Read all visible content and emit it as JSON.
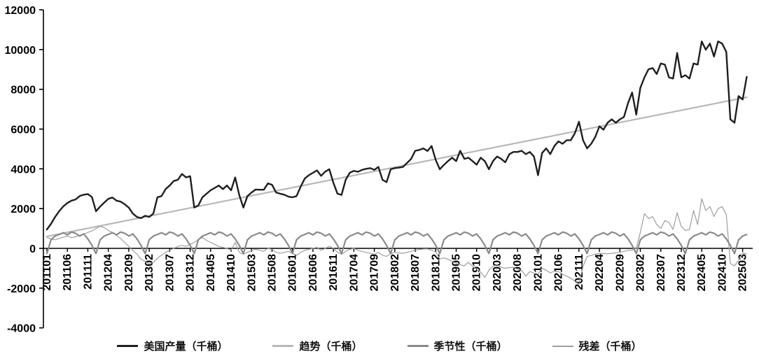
{
  "chart_data": {
    "type": "line",
    "title": "",
    "x_start": "2011-01",
    "x_end": "2025-04",
    "n_points": 172,
    "x_tick_interval_months": 5,
    "x_tick_labels": [
      "201101",
      "201106",
      "201111",
      "201204",
      "201209",
      "201302",
      "201307",
      "201312",
      "201405",
      "201410",
      "201503",
      "201508",
      "201601",
      "201606",
      "201611",
      "201704",
      "201709",
      "201802",
      "201807",
      "201812",
      "201905",
      "201910",
      "202003",
      "202008",
      "202101",
      "202106",
      "202111",
      "202204",
      "202209",
      "202302",
      "202307",
      "202312",
      "202405",
      "202410",
      "202503"
    ],
    "y_axis": {
      "min": -4000,
      "max": 12000,
      "tick_step": 2000,
      "ticks": [
        12000,
        10000,
        8000,
        6000,
        4000,
        2000,
        0,
        -2000,
        -4000
      ]
    },
    "grid": false,
    "legend_position": "bottom",
    "axis_color": "#000000",
    "series": [
      {
        "name": "美国产量（千桶）",
        "color": "#1f1f1f",
        "stroke_width": 2.4,
        "values": [
          950,
          1230,
          1580,
          1870,
          2110,
          2280,
          2400,
          2460,
          2630,
          2700,
          2730,
          2580,
          1870,
          2100,
          2300,
          2490,
          2560,
          2400,
          2350,
          2220,
          2050,
          1750,
          1580,
          1520,
          1640,
          1580,
          1750,
          2570,
          2630,
          2980,
          3160,
          3390,
          3450,
          3740,
          3570,
          3630,
          2050,
          2160,
          2570,
          2750,
          2920,
          3040,
          3160,
          2980,
          3160,
          2920,
          3570,
          2680,
          2050,
          2630,
          2810,
          2960,
          2950,
          2950,
          3270,
          3200,
          2810,
          2750,
          2700,
          2600,
          2570,
          2630,
          3100,
          3510,
          3680,
          3800,
          3920,
          3650,
          3860,
          3980,
          3300,
          2750,
          2690,
          3450,
          3800,
          3900,
          3850,
          3950,
          4000,
          4035,
          3950,
          4095,
          3450,
          3330,
          3980,
          4035,
          4060,
          4095,
          4300,
          4500,
          4910,
          4950,
          5030,
          4900,
          5150,
          4445,
          3980,
          4200,
          4390,
          4560,
          4390,
          4910,
          4500,
          4560,
          4390,
          4210,
          4560,
          4390,
          3980,
          4390,
          4620,
          4500,
          4330,
          4740,
          4850,
          4850,
          4910,
          4740,
          4850,
          4620,
          3680,
          4795,
          5030,
          4740,
          5150,
          5380,
          5260,
          5440,
          5440,
          5790,
          6370,
          5440,
          5030,
          5260,
          5610,
          6140,
          5970,
          6320,
          6490,
          6320,
          6490,
          6610,
          7310,
          7840,
          6730,
          8070,
          8600,
          9010,
          9070,
          8770,
          9300,
          9240,
          8600,
          8540,
          9830,
          8600,
          8710,
          8540,
          9300,
          9240,
          10410,
          9990,
          10300,
          9650,
          10410,
          10300,
          9880,
          6490,
          6320,
          7660,
          7490,
          8630
        ]
      },
      {
        "name": "趋势（千桶）",
        "color": "#b8b8b8",
        "stroke_width": 2.2,
        "linear": {
          "start": 600,
          "end": 7600
        }
      },
      {
        "name": "季节性（千桶）",
        "color": "#8a8a8a",
        "stroke_width": 2.2,
        "seasonal_pattern_jan_dec": [
          -260,
          430,
          620,
          700,
          790,
          680,
          820,
          760,
          620,
          730,
          480,
          150
        ]
      },
      {
        "name": "残差（千桶）",
        "color": "#9e9e9e",
        "stroke_width": 1.2,
        "values": [
          550,
          480,
          430,
          500,
          560,
          620,
          540,
          580,
          650,
          720,
          800,
          880,
          1000,
          1110,
          1050,
          900,
          800,
          650,
          500,
          300,
          100,
          -100,
          -300,
          -550,
          -650,
          -780,
          -700,
          -500,
          -350,
          -200,
          -100,
          0,
          100,
          150,
          100,
          200,
          300,
          450,
          550,
          400,
          300,
          200,
          100,
          50,
          0,
          -100,
          300,
          -200,
          -300,
          -200,
          -100,
          -50,
          -100,
          -150,
          0,
          -50,
          -200,
          -250,
          -200,
          -150,
          -250,
          -350,
          -200,
          -100,
          -50,
          0,
          50,
          -100,
          0,
          100,
          0,
          -200,
          -300,
          -150,
          -50,
          0,
          -100,
          -150,
          -200,
          -250,
          -300,
          -200,
          -350,
          -400,
          -260,
          -200,
          -230,
          -250,
          -200,
          -150,
          -100,
          -60,
          -30,
          -25,
          -100,
          -175,
          -530,
          -480,
          -550,
          -650,
          -760,
          -820,
          -880,
          -700,
          -900,
          -1050,
          -1200,
          -1460,
          -1100,
          -900,
          -830,
          -950,
          -1000,
          -970,
          -950,
          -1050,
          -1100,
          -1400,
          -1170,
          -1250,
          -1290,
          -1000,
          -1100,
          -1230,
          -1150,
          -1170,
          -1300,
          -1400,
          -1500,
          -1650,
          -1810,
          -900,
          -410,
          -350,
          -290,
          -250,
          -260,
          -270,
          -250,
          -230,
          -200,
          -150,
          -100,
          -90,
          0,
          800,
          1750,
          1500,
          1600,
          1200,
          1000,
          1400,
          1300,
          950,
          1800,
          1100,
          900,
          950,
          1900,
          1200,
          2500,
          1900,
          2100,
          1600,
          2000,
          2100,
          1700,
          -760,
          -880,
          -600,
          -230,
          -290
        ]
      }
    ]
  }
}
